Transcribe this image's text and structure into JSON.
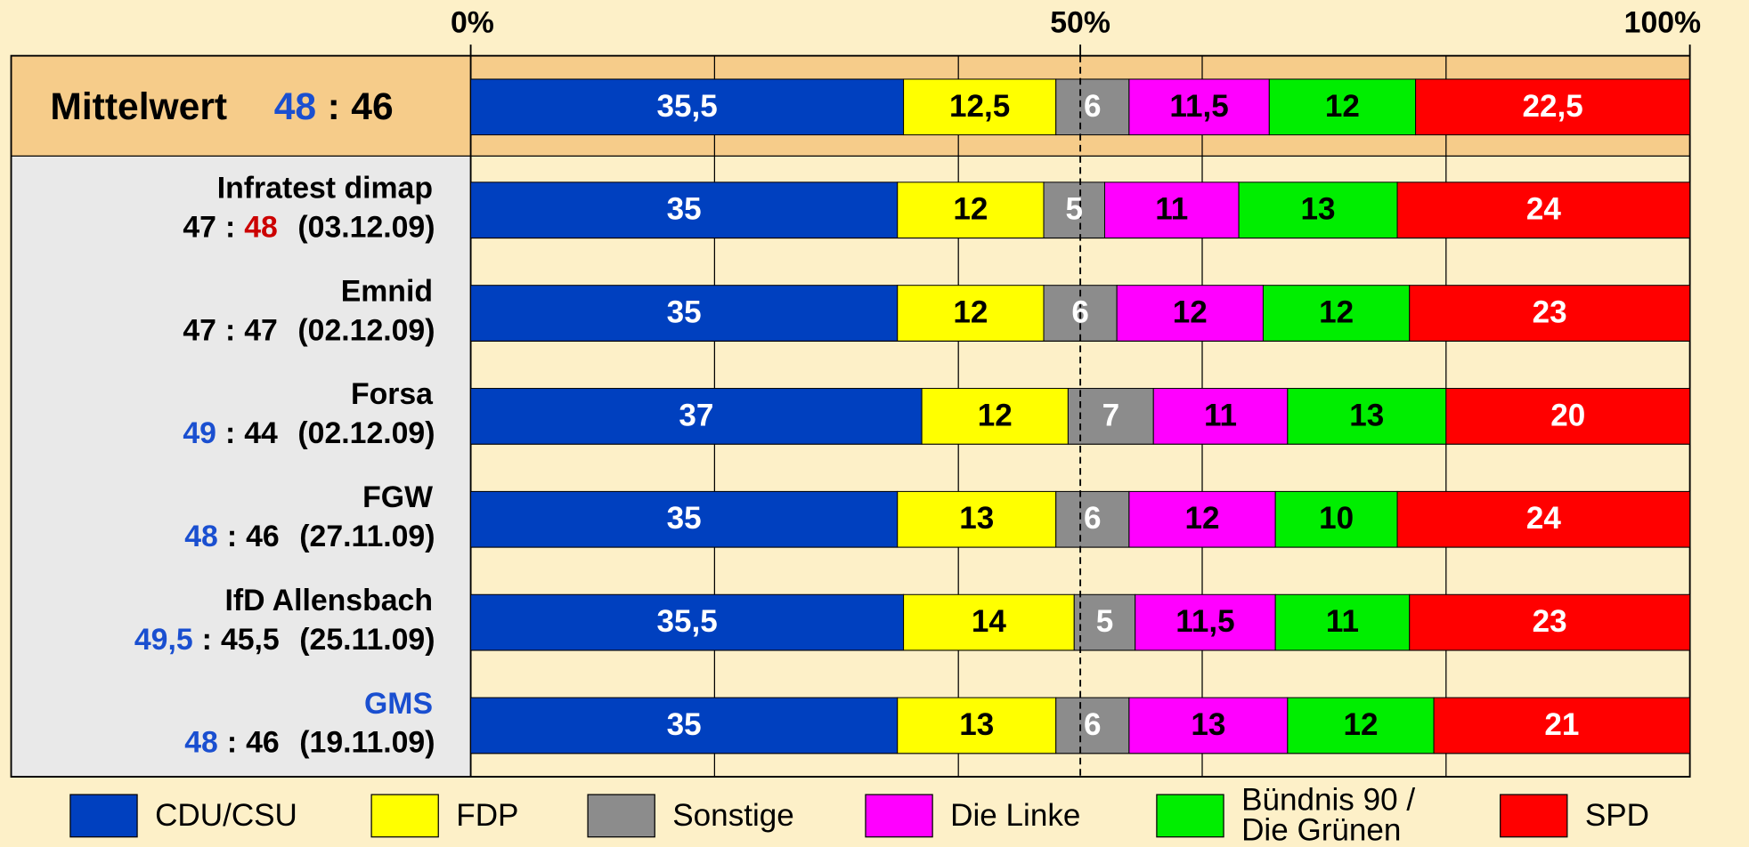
{
  "chart_data": {
    "type": "stacked_barh",
    "separator": ":",
    "rows": [
      {
        "name": "Mittelwert",
        "left": "48",
        "right": "46",
        "name_color": "#000000",
        "left_color": "#1a4fd0",
        "right_color": "#000000"
      },
      {
        "name": "Infratest dimap",
        "left": "47",
        "right": "48",
        "date": "(03.12.09)",
        "name_color": "#000000",
        "left_color": "#000000",
        "right_color": "#cc0000"
      },
      {
        "name": "Emnid",
        "left": "47",
        "right": "47",
        "date": "(02.12.09)",
        "name_color": "#000000",
        "left_color": "#000000",
        "right_color": "#000000"
      },
      {
        "name": "Forsa",
        "left": "49",
        "right": "44",
        "date": "(02.12.09)",
        "name_color": "#000000",
        "left_color": "#1a4fd0",
        "right_color": "#000000"
      },
      {
        "name": "FGW",
        "left": "48",
        "right": "46",
        "date": "(27.11.09)",
        "name_color": "#000000",
        "left_color": "#1a4fd0",
        "right_color": "#000000"
      },
      {
        "name": "IfD Allensbach",
        "left": "49,5",
        "right": "45,5",
        "date": "(25.11.09)",
        "name_color": "#000000",
        "left_color": "#1a4fd0",
        "right_color": "#000000"
      },
      {
        "name": "GMS",
        "left": "48",
        "right": "46",
        "date": "(19.11.09)",
        "name_color": "#1a4fd0",
        "left_color": "#1a4fd0",
        "right_color": "#000000"
      }
    ],
    "series": [
      {
        "name": "CDU/CSU",
        "color": "#0040bf",
        "label_color": "#ffffff",
        "values": [
          35.5,
          35,
          35,
          37,
          35,
          35.5,
          35
        ],
        "value_labels": [
          "35,5",
          "35",
          "35",
          "37",
          "35",
          "35,5",
          "35"
        ]
      },
      {
        "name": "FDP",
        "color": "#ffff00",
        "label_color": "#000000",
        "values": [
          12.5,
          12,
          12,
          12,
          13,
          14,
          13
        ],
        "value_labels": [
          "12,5",
          "12",
          "12",
          "12",
          "13",
          "14",
          "13"
        ]
      },
      {
        "name": "Sonstige",
        "color": "#8c8c8c",
        "label_color": "#ffffff",
        "values": [
          6,
          5,
          6,
          7,
          6,
          5,
          6
        ]
      },
      {
        "name": "Die Linke",
        "color": "#ff00ff",
        "label_color": "#000000",
        "values": [
          11.5,
          11,
          12,
          11,
          12,
          11.5,
          13
        ],
        "value_labels": [
          "11,5",
          "11",
          "12",
          "11",
          "12",
          "11,5",
          "13"
        ]
      },
      {
        "name": "Bündnis 90 / Die Grünen",
        "color": "#00ee00",
        "label_color": "#000000",
        "values": [
          12,
          13,
          12,
          13,
          10,
          11,
          12
        ]
      },
      {
        "name": "SPD",
        "color": "#ff0000",
        "label_color": "#ffffff",
        "values": [
          22.5,
          24,
          23,
          20,
          24,
          23,
          21
        ],
        "value_labels": [
          "22,5",
          "24",
          "23",
          "20",
          "24",
          "23",
          "21"
        ]
      }
    ],
    "xlim": [
      0,
      100
    ],
    "xticks": [
      {
        "value": 0,
        "label": "0%"
      },
      {
        "value": 50,
        "label": "50%"
      },
      {
        "value": 100,
        "label": "100%"
      }
    ],
    "xminorticks": [
      20,
      40,
      60,
      80
    ],
    "dashed_line": 50
  }
}
